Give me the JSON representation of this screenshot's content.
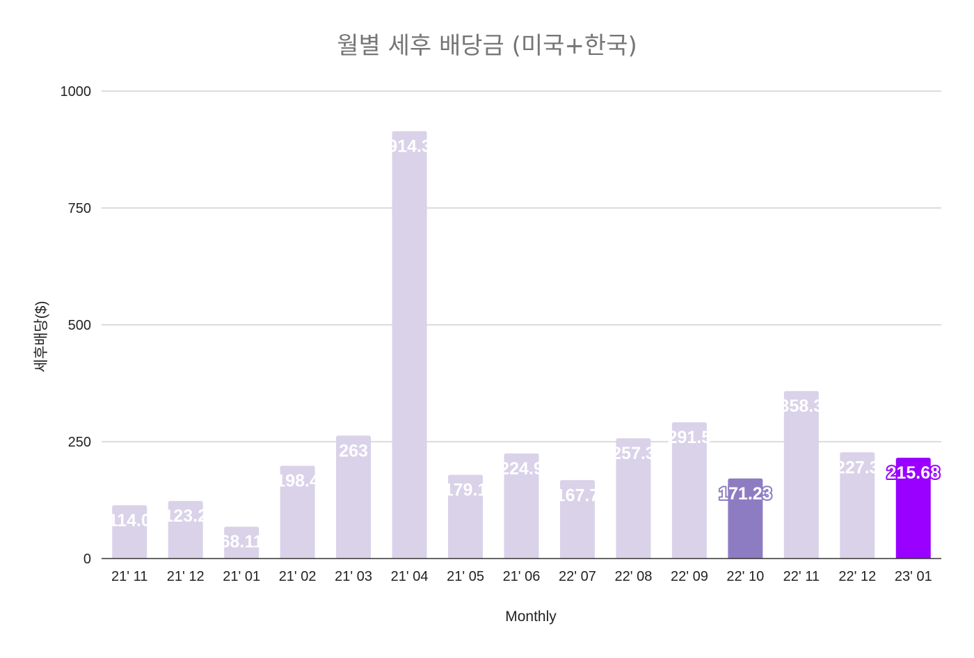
{
  "chart_data": {
    "type": "bar",
    "title": "월별 세후 배당금 (미국+한국)",
    "xlabel": "Monthly",
    "ylabel": "세후배당($)",
    "ylim": [
      0,
      1000
    ],
    "yticks": [
      0,
      250,
      500,
      750,
      1000
    ],
    "grid": true,
    "legend": "none",
    "categories": [
      "21' 11",
      "21' 12",
      "21' 01",
      "21' 02",
      "21' 03",
      "21' 04",
      "21' 05",
      "21' 06",
      "22' 07",
      "22' 08",
      "22' 09",
      "22' 10",
      "22' 11",
      "22' 12",
      "23' 01"
    ],
    "values": [
      114.0,
      123.2,
      68.11,
      198.4,
      263,
      914.3,
      179.1,
      224.9,
      167.7,
      257.3,
      291.5,
      171.23,
      358.3,
      227.3,
      215.68
    ],
    "data_labels": [
      "114.0",
      "123.2",
      "68.11",
      "198.4",
      "263",
      "914.3",
      "179.1",
      "224.9",
      "167.7",
      "257.3",
      "291.5",
      "171.23",
      "358.3",
      "227.3",
      "215.68"
    ],
    "colors": {
      "default": "#d9d2e9",
      "highlight_22_10": "#8e7cc3",
      "highlight_23_01": "#9900ff",
      "label_outline_22_10": "#8e7cc3",
      "label_outline_23_01": "#9900ff"
    },
    "highlighted": {
      "22' 10": "#8e7cc3",
      "23' 01": "#9900ff"
    }
  }
}
